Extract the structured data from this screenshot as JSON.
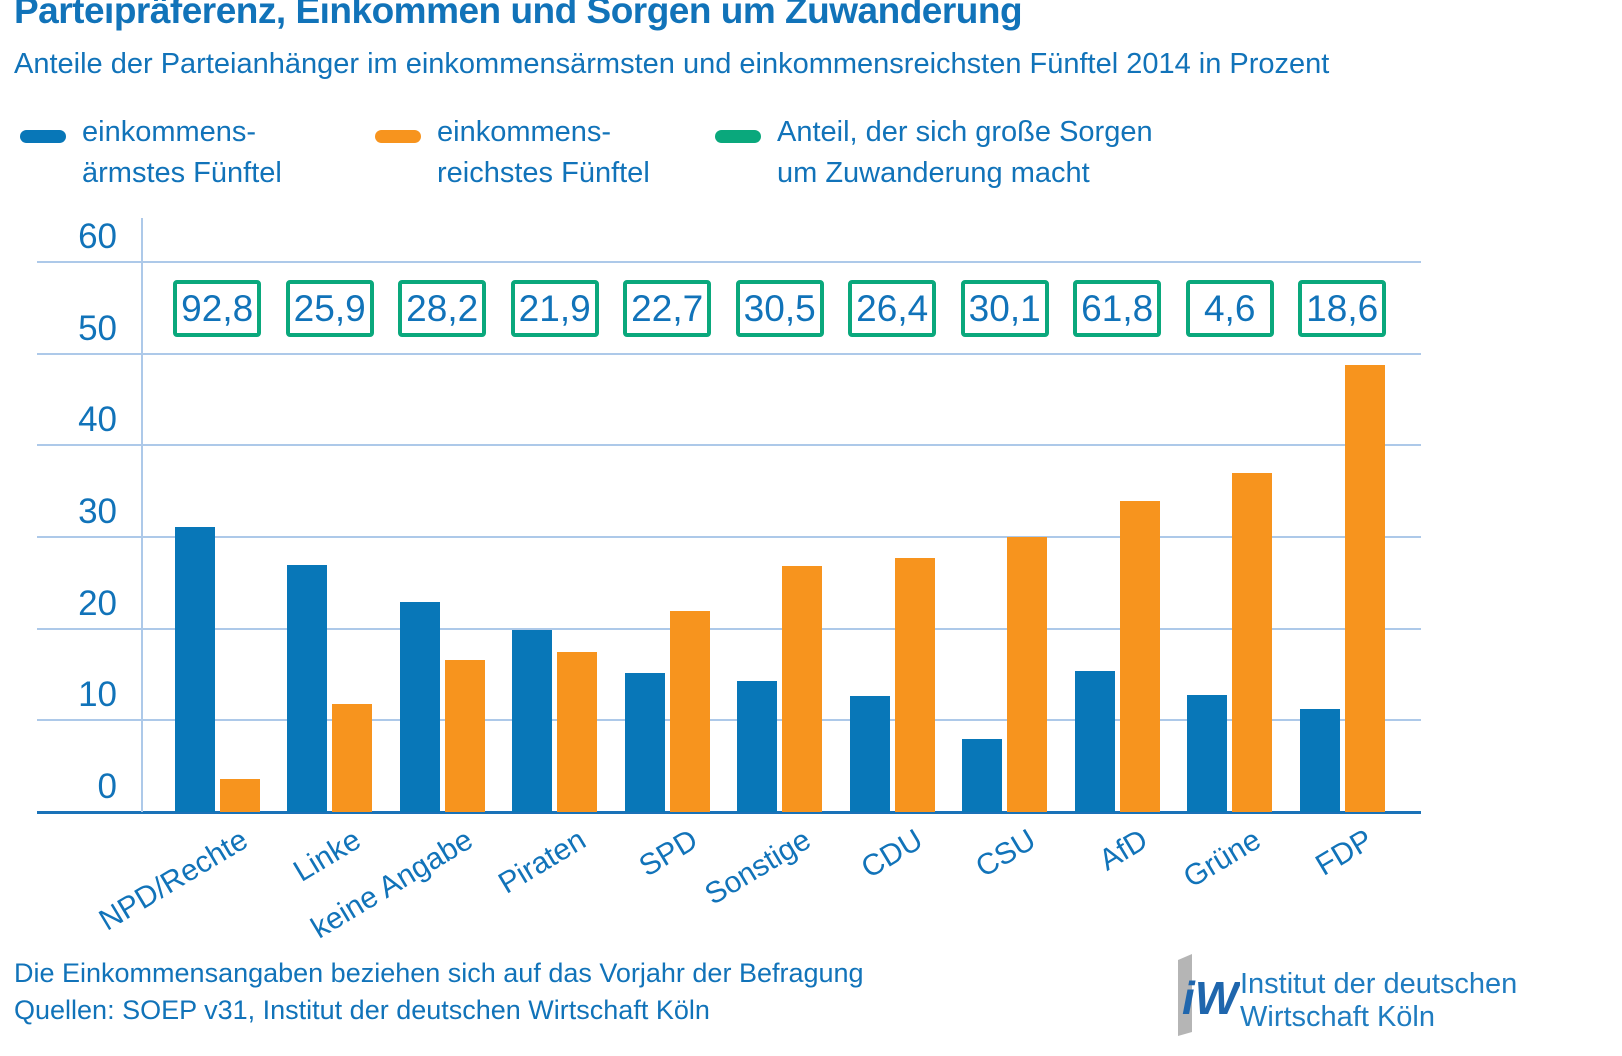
{
  "header": {
    "title": "Parteipräferenz, Einkommen und Sorgen um Zuwanderung",
    "subtitle": "Anteile der Parteianhänger im einkommensärmsten und einkommensreichsten Fünftel 2014 in Prozent"
  },
  "legend": {
    "items": [
      {
        "line1": "einkommens-",
        "line2": "ärmstes Fünftel",
        "color": "#0877b8"
      },
      {
        "line1": "einkommens-",
        "line2": "reichstes Fünftel",
        "color": "#f7941e"
      },
      {
        "line1": "Anteil, der sich große Sorgen",
        "line2": "um Zuwanderung macht",
        "color": "#0aa87c"
      }
    ]
  },
  "chart_data": {
    "type": "bar",
    "categories": [
      "NPD/Rechte",
      "Linke",
      "keine Angabe",
      "Piraten",
      "SPD",
      "Sonstige",
      "CDU",
      "CSU",
      "AfD",
      "Grüne",
      "FDP"
    ],
    "series": [
      {
        "name": "einkommensärmstes Fünftel",
        "color": "#0877b8",
        "values": [
          31.1,
          26.9,
          22.9,
          19.9,
          15.2,
          14.3,
          12.7,
          8.0,
          15.4,
          12.8,
          11.2
        ]
      },
      {
        "name": "einkommensreichstes Fünftel",
        "color": "#f7941e",
        "values": [
          3.6,
          11.8,
          16.6,
          17.5,
          21.9,
          26.8,
          27.7,
          30.0,
          33.9,
          37.0,
          48.8
        ]
      }
    ],
    "annotations": {
      "name": "Anteil, der sich große Sorgen um Zuwanderung macht",
      "color": "#0aa87c",
      "values": [
        92.8,
        25.9,
        28.2,
        21.9,
        22.7,
        30.5,
        26.4,
        30.1,
        61.8,
        4.6,
        18.6
      ],
      "labels": [
        "92,8",
        "25,9",
        "28,2",
        "21,9",
        "22,7",
        "30,5",
        "26,4",
        "30,1",
        "61,8",
        "4,6",
        "18,6"
      ]
    },
    "yticks": [
      0,
      10,
      20,
      30,
      40,
      50,
      60
    ],
    "ylim": [
      0,
      60
    ],
    "grid": true,
    "legend_position": "top"
  },
  "footer": {
    "note": "Die Einkommensangaben beziehen sich auf das Vorjahr der Befragung",
    "source": "Quellen: SOEP v31, Institut der deutschen Wirtschaft Köln"
  },
  "logo": {
    "mark": "iW",
    "line1": "Institut der deutschen",
    "line2": "Wirtschaft Köln"
  }
}
